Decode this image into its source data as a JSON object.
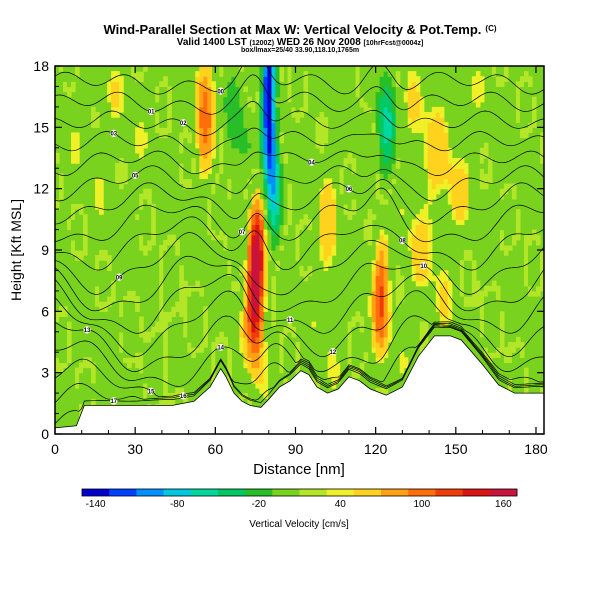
{
  "header": {
    "title": "Wind-Parallel Section at Max W: Vertical Velocity & Pot.Temp.",
    "title_mark": "(C)",
    "subtitle_left": "Valid 1400 LST",
    "subtitle_small": "(1200Z)",
    "subtitle_right": "WED 26 Nov 2008",
    "subtitle_run": "[10hrFcst@0004z]",
    "info": "box/lmax=25/40 33.90,118.10,1765m"
  },
  "chart_data": {
    "type": "heatmap",
    "xlabel": "Distance [nm]",
    "ylabel": "Height [Kft MSL]",
    "xlim": [
      0,
      183
    ],
    "ylim": [
      0,
      18
    ],
    "xticks": [
      0,
      30,
      60,
      90,
      120,
      150,
      180
    ],
    "yticks": [
      0,
      3,
      6,
      9,
      12,
      15,
      18
    ],
    "colorbar": {
      "label": "Vertical Velocity [cm/s]",
      "range": [
        -150,
        170
      ],
      "tick_labels": [
        -140,
        -80,
        -20,
        40,
        100,
        160
      ],
      "colors": [
        "#0000cc",
        "#0040ff",
        "#0090ff",
        "#00c8e0",
        "#00d8a0",
        "#00c864",
        "#28be28",
        "#78d21e",
        "#b4e628",
        "#f0f028",
        "#ffd21e",
        "#ffa014",
        "#ff6e0a",
        "#f03c0a",
        "#dc1414",
        "#c8143c"
      ]
    },
    "terrain_kft": [
      [
        0,
        0.3
      ],
      [
        8,
        0.4
      ],
      [
        11,
        1.4
      ],
      [
        20,
        1.4
      ],
      [
        35,
        1.4
      ],
      [
        44,
        1.4
      ],
      [
        52,
        1.6
      ],
      [
        58,
        2.3
      ],
      [
        62,
        3.2
      ],
      [
        64,
        2.8
      ],
      [
        67,
        2.0
      ],
      [
        70,
        1.6
      ],
      [
        73,
        1.4
      ],
      [
        77,
        1.3
      ],
      [
        80,
        1.7
      ],
      [
        84,
        2.3
      ],
      [
        88,
        2.6
      ],
      [
        92,
        3.1
      ],
      [
        95,
        2.9
      ],
      [
        98,
        2.3
      ],
      [
        102,
        2.0
      ],
      [
        106,
        2.2
      ],
      [
        110,
        2.8
      ],
      [
        114,
        2.6
      ],
      [
        118,
        2.2
      ],
      [
        124,
        1.9
      ],
      [
        130,
        2.3
      ],
      [
        136,
        3.8
      ],
      [
        142,
        4.8
      ],
      [
        148,
        4.8
      ],
      [
        152,
        4.6
      ],
      [
        156,
        4.0
      ],
      [
        160,
        3.4
      ],
      [
        166,
        2.4
      ],
      [
        172,
        2.0
      ],
      [
        183,
        2.0
      ]
    ],
    "vertical_velocity_features": [
      {
        "x": 75,
        "z": 7.0,
        "w": 165
      },
      {
        "x": 122,
        "z": 7.0,
        "w": 100
      },
      {
        "x": 80,
        "z": 16.5,
        "w": -145
      },
      {
        "x": 124,
        "z": 15.0,
        "w": -40
      }
    ],
    "theta_contour_labels": [
      "17",
      "16",
      "15",
      "14",
      "13",
      "12",
      "11",
      "10",
      "09",
      "08",
      "07",
      "06",
      "05",
      "04",
      "03",
      "02",
      "01",
      "00"
    ]
  }
}
